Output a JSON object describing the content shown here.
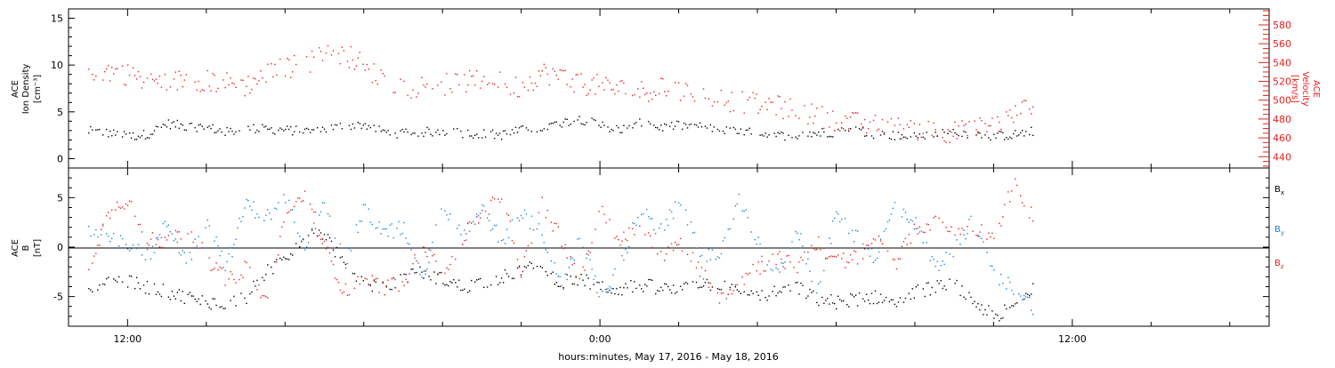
{
  "chart_data": [
    {
      "type": "scatter",
      "panel": "top",
      "ylabel": [
        "ACE",
        "Ion Density",
        "[cm⁻³]"
      ],
      "ylabel_right": [
        "ACE",
        "Velocity",
        "[km/s]"
      ],
      "ylim": [
        -1,
        16
      ],
      "y_ticks": [
        "0",
        "5",
        "10",
        "15"
      ],
      "y_ticks_values": [
        0,
        5,
        10,
        15
      ],
      "ylim_right": [
        428,
        597
      ],
      "y_ticks_right": [
        "440",
        "460",
        "480",
        "500",
        "520",
        "540",
        "560",
        "580"
      ],
      "y_ticks_right_values": [
        440,
        460,
        480,
        500,
        520,
        540,
        560,
        580
      ],
      "grid": false,
      "series": [
        {
          "axis": "left",
          "color": "#000000",
          "hours": [
            11.0,
            11.5,
            12.0,
            12.5,
            13.0,
            13.5,
            14.0,
            14.5,
            15.0,
            15.5,
            16.0,
            16.5,
            17.0,
            17.5,
            18.0,
            18.5,
            19.0,
            19.5,
            20.0,
            20.5,
            21.0,
            21.5,
            22.0,
            22.5,
            23.0,
            23.5,
            24.0,
            24.5,
            25.0,
            25.5,
            26.0,
            26.5,
            27.0,
            27.5,
            28.0,
            28.5,
            29.0,
            29.5,
            30.0,
            30.5,
            31.0,
            31.5,
            32.0,
            32.5,
            33.0,
            33.5,
            34.0,
            34.5,
            35.0
          ],
          "values": [
            3.0,
            2.8,
            2.4,
            2.7,
            3.8,
            3.5,
            3.4,
            2.9,
            3.3,
            3.2,
            3.1,
            3.0,
            3.2,
            3.6,
            3.7,
            2.9,
            2.7,
            2.9,
            3.0,
            2.8,
            2.7,
            2.6,
            3.1,
            3.3,
            3.9,
            4.3,
            3.6,
            3.2,
            3.8,
            3.4,
            3.6,
            3.5,
            3.1,
            2.9,
            2.8,
            2.5,
            2.6,
            2.8,
            2.9,
            3.1,
            2.7,
            2.5,
            2.4,
            2.6,
            2.9,
            2.7,
            2.5,
            2.6,
            3.0
          ],
          "spread": 0.5
        },
        {
          "axis": "right",
          "color": "#e8201d",
          "hours": [
            11.0,
            11.5,
            12.0,
            12.5,
            13.0,
            13.5,
            14.0,
            14.5,
            15.0,
            15.5,
            16.0,
            16.5,
            17.0,
            17.5,
            18.0,
            18.5,
            19.0,
            19.5,
            20.0,
            20.5,
            21.0,
            21.5,
            22.0,
            22.5,
            23.0,
            23.5,
            24.0,
            24.5,
            25.0,
            25.5,
            26.0,
            26.5,
            27.0,
            27.5,
            28.0,
            28.5,
            29.0,
            29.5,
            30.0,
            30.5,
            31.0,
            31.5,
            32.0,
            32.5,
            33.0,
            33.5,
            34.0,
            34.5,
            35.0
          ],
          "values": [
            523,
            532,
            528,
            522,
            518,
            524,
            521,
            519,
            516,
            528,
            535,
            540,
            548,
            550,
            538,
            520,
            514,
            516,
            517,
            519,
            522,
            519,
            514,
            530,
            526,
            518,
            516,
            512,
            510,
            513,
            510,
            508,
            502,
            499,
            496,
            494,
            489,
            484,
            480,
            476,
            474,
            471,
            470,
            468,
            467,
            470,
            474,
            484,
            498
          ],
          "spread": 12
        }
      ]
    },
    {
      "type": "scatter",
      "panel": "bottom",
      "ylabel": [
        "ACE",
        "B",
        "[nT]"
      ],
      "ylim": [
        -8,
        8
      ],
      "y_ticks": [
        "-5",
        "0",
        "5"
      ],
      "y_ticks_values": [
        -5,
        0,
        5
      ],
      "zero_line": true,
      "grid": false,
      "legend_position": "right",
      "series": [
        {
          "name": "Bx",
          "color": "#000000",
          "hours": [
            11.0,
            11.5,
            12.0,
            12.5,
            13.0,
            13.5,
            14.0,
            14.5,
            15.0,
            15.5,
            16.0,
            16.5,
            17.0,
            17.5,
            18.0,
            18.5,
            19.0,
            19.5,
            20.0,
            20.5,
            21.0,
            21.5,
            22.0,
            22.5,
            23.0,
            23.5,
            24.0,
            24.5,
            25.0,
            25.5,
            26.0,
            26.5,
            27.0,
            27.5,
            28.0,
            28.5,
            29.0,
            29.5,
            30.0,
            30.5,
            31.0,
            31.5,
            32.0,
            32.5,
            33.0,
            33.5,
            34.0,
            34.5,
            35.0
          ],
          "values": [
            -4.8,
            -3.0,
            -3.5,
            -4.0,
            -4.5,
            -5.0,
            -5.5,
            -5.6,
            -5.0,
            -2.5,
            -1.0,
            1.0,
            1.5,
            -2.0,
            -3.5,
            -4.2,
            -3.0,
            -2.5,
            -3.2,
            -4.0,
            -3.5,
            -3.0,
            -2.2,
            -2.0,
            -3.5,
            -3.2,
            -4.0,
            -4.2,
            -3.8,
            -4.0,
            -4.5,
            -3.5,
            -3.8,
            -4.5,
            -5.0,
            -4.5,
            -4.0,
            -5.2,
            -5.5,
            -5.2,
            -5.0,
            -5.3,
            -4.5,
            -4.0,
            -3.8,
            -5.5,
            -7.0,
            -6.0,
            -4.0
          ],
          "spread": 0.7
        },
        {
          "name": "By",
          "color": "#1c84d4",
          "hours": [
            11.0,
            11.5,
            12.0,
            12.5,
            13.0,
            13.5,
            14.0,
            14.5,
            15.0,
            15.5,
            16.0,
            16.5,
            17.0,
            17.5,
            18.0,
            18.5,
            19.0,
            19.5,
            20.0,
            20.5,
            21.0,
            21.5,
            22.0,
            22.5,
            23.0,
            23.5,
            24.0,
            24.5,
            25.0,
            25.5,
            26.0,
            26.5,
            27.0,
            27.5,
            28.0,
            28.5,
            29.0,
            29.5,
            30.0,
            30.5,
            31.0,
            31.5,
            32.0,
            32.5,
            33.0,
            33.5,
            34.0,
            34.5,
            35.0
          ],
          "values": [
            2.0,
            1.5,
            0.5,
            -1.0,
            2.5,
            -1.5,
            3.0,
            -2.0,
            4.5,
            3.0,
            5.0,
            0.5,
            5.2,
            -2.0,
            4.0,
            1.5,
            2.0,
            -3.0,
            4.5,
            1.0,
            4.0,
            0.5,
            3.5,
            1.5,
            -4.0,
            1.0,
            -5.0,
            -2.0,
            4.0,
            1.5,
            4.5,
            0.0,
            -1.5,
            5.0,
            0.5,
            -3.0,
            2.0,
            -4.5,
            3.5,
            1.0,
            -1.0,
            4.5,
            2.5,
            -2.0,
            0.0,
            3.0,
            -3.0,
            -4.0,
            -6.0
          ],
          "spread": 0.8
        },
        {
          "name": "Bz",
          "color": "#e8201d",
          "hours": [
            11.0,
            11.5,
            12.0,
            12.5,
            13.0,
            13.5,
            14.0,
            14.5,
            15.0,
            15.5,
            16.0,
            16.5,
            17.0,
            17.5,
            18.0,
            18.5,
            19.0,
            19.5,
            20.0,
            20.5,
            21.0,
            21.5,
            22.0,
            22.5,
            23.0,
            23.5,
            24.0,
            24.5,
            25.0,
            25.5,
            26.0,
            26.5,
            27.0,
            27.5,
            28.0,
            28.5,
            29.0,
            29.5,
            30.0,
            30.5,
            31.0,
            31.5,
            32.0,
            32.5,
            33.0,
            33.5,
            34.0,
            34.5,
            35.0
          ],
          "values": [
            -2.0,
            3.5,
            5.0,
            1.0,
            0.5,
            2.0,
            -1.0,
            -3.5,
            -2.0,
            -5.5,
            3.0,
            5.5,
            0.0,
            -4.5,
            -3.0,
            -4.0,
            -3.5,
            0.5,
            -3.0,
            1.0,
            3.5,
            5.2,
            -2.5,
            4.5,
            1.0,
            -3.5,
            4.0,
            0.5,
            2.5,
            -1.0,
            0.5,
            -2.0,
            -5.0,
            -3.5,
            -2.0,
            -1.0,
            -2.0,
            0.5,
            -1.5,
            -1.0,
            1.0,
            -1.5,
            2.0,
            2.5,
            1.5,
            2.0,
            1.0,
            6.5,
            3.0
          ],
          "spread": 0.8
        }
      ]
    }
  ],
  "x_axis": {
    "label": "hours:minutes, May 17, 2016 - May 18, 2016",
    "xlim_hours": [
      10.5,
      41.0
    ],
    "tick_labels": [
      "12:00",
      "0:00",
      "12:00"
    ],
    "tick_hours": [
      12,
      24,
      36
    ]
  },
  "legend": [
    "B",
    "B",
    "B"
  ],
  "legend_subscripts": [
    "x",
    "y",
    "z"
  ],
  "colors": {
    "black": "#000000",
    "red": "#e8201d",
    "blue": "#1c84d4"
  }
}
